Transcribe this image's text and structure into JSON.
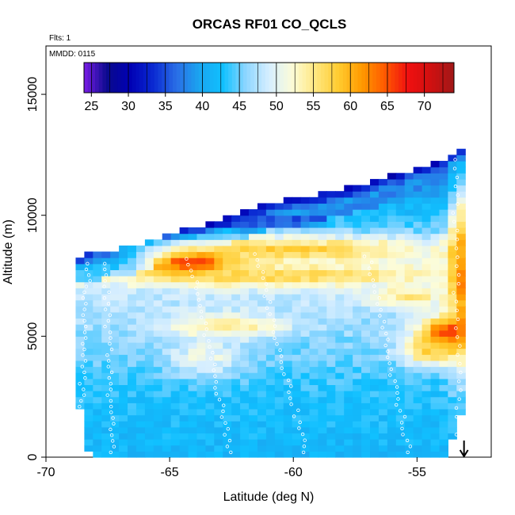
{
  "chart_data": {
    "type": "heatmap",
    "title": "ORCAS RF01 CO_QCLS",
    "xlabel": "Latitude (deg N)",
    "ylabel": "Altitude (m)",
    "xlim": [
      -70,
      -52
    ],
    "ylim": [
      0,
      17000
    ],
    "x_ticks": [
      -70,
      -65,
      -60,
      -55
    ],
    "y_ticks": [
      0,
      5000,
      10000,
      15000
    ],
    "annotations": {
      "flights": "Flts: 1",
      "date": "MMDD: 0115"
    },
    "colorbar": {
      "ticks": [
        25,
        30,
        35,
        40,
        45,
        50,
        55,
        60,
        65,
        70
      ],
      "range": [
        24,
        74
      ],
      "colors": [
        "#7a1ee6",
        "#0a0a8c",
        "#0000b4",
        "#0a2ad2",
        "#2a6ee6",
        "#1aa6f0",
        "#10c0ff",
        "#8ed6ff",
        "#d6eeff",
        "#fcfcd8",
        "#ffe680",
        "#ffcc30",
        "#ff9a00",
        "#ff5a00",
        "#f01010",
        "#d01010",
        "#a01818"
      ],
      "placement": "top"
    },
    "field": {
      "lat_range": [
        -68.8,
        -53.1
      ],
      "lat_step": 0.35,
      "alt_step": 250,
      "top_profile": [
        [
          -68.8,
          8200
        ],
        [
          -66.5,
          8600
        ],
        [
          -65.5,
          9000
        ],
        [
          -63.5,
          9600
        ],
        [
          -61.5,
          10300
        ],
        [
          -58,
          11000
        ],
        [
          -56,
          11600
        ],
        [
          -54,
          12200
        ],
        [
          -53.1,
          12700
        ]
      ],
      "bottom_profile": [
        [
          -68.8,
          2200
        ],
        [
          -68.4,
          0
        ],
        [
          -54,
          0
        ],
        [
          -53.1,
          2800
        ]
      ],
      "plumes": [
        {
          "lat": -64.3,
          "alt": 7900,
          "lat_width": 1.7,
          "alt_width": 500,
          "value": 72
        },
        {
          "lat": -60.5,
          "alt": 8500,
          "lat_width": 6.0,
          "alt_width": 500,
          "value": 58
        },
        {
          "lat": -61.0,
          "alt": 7400,
          "lat_width": 7.0,
          "alt_width": 450,
          "value": 57
        },
        {
          "lat": -63.0,
          "alt": 5300,
          "lat_width": 2.5,
          "alt_width": 500,
          "value": 55
        },
        {
          "lat": -63.8,
          "alt": 4000,
          "lat_width": 1.5,
          "alt_width": 800,
          "value": 51
        },
        {
          "lat": -53.8,
          "alt": 5000,
          "lat_width": 1.2,
          "alt_width": 700,
          "value": 69
        },
        {
          "lat": -53.4,
          "alt": 7500,
          "lat_width": 0.5,
          "alt_width": 3500,
          "value": 62
        },
        {
          "lat": -54.6,
          "alt": 4300,
          "lat_width": 1.2,
          "alt_width": 600,
          "value": 58
        },
        {
          "lat": -55.5,
          "alt": 6500,
          "lat_width": 1.5,
          "alt_width": 400,
          "value": 55
        }
      ],
      "bands": [
        {
          "alt": 9600,
          "width": 350,
          "value": 31
        },
        {
          "alt": 8600,
          "width": 200,
          "value": 40
        }
      ],
      "base_profile": [
        [
          0,
          41.5
        ],
        [
          2500,
          43
        ],
        [
          4500,
          45.5
        ],
        [
          6500,
          48
        ],
        [
          8000,
          49.5
        ],
        [
          9500,
          44
        ],
        [
          11000,
          39
        ],
        [
          12500,
          34
        ]
      ]
    },
    "samples": {
      "style": "white-circle",
      "tracks": [
        {
          "from": [
            -68.7,
            200
          ],
          "to": [
            -68.3,
            8000
          ]
        },
        {
          "from": [
            -67.3,
            200
          ],
          "to": [
            -67.6,
            8000
          ]
        },
        {
          "from": [
            -64.2,
            8200
          ],
          "to": [
            -62.5,
            200
          ]
        },
        {
          "from": [
            -61.5,
            8400
          ],
          "to": [
            -59.5,
            200
          ]
        },
        {
          "from": [
            -55.3,
            200
          ],
          "to": [
            -57.0,
            8300
          ]
        },
        {
          "from": [
            -53.3,
            200
          ],
          "to": [
            -53.5,
            12300
          ]
        }
      ]
    },
    "marker": {
      "type": "down-arrow",
      "lat": -53.1
    }
  }
}
